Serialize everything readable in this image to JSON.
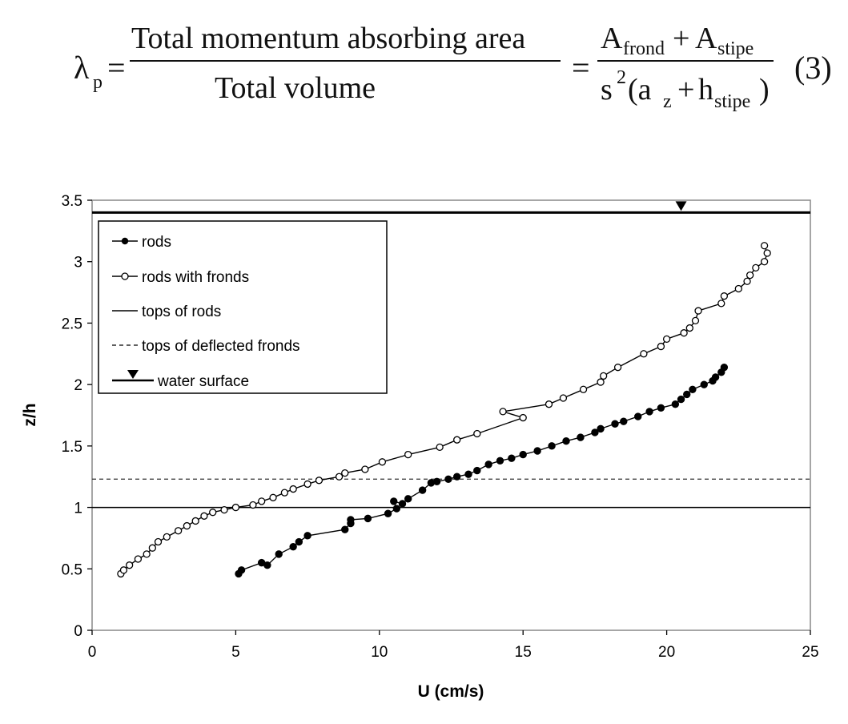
{
  "equation": {
    "lhs_symbol": "λ",
    "lhs_sub": "p",
    "eq1": "=",
    "frac1_num": "Total  momentum  absorbing  area",
    "frac1_den": "Total  volume",
    "eq2": "=",
    "frac2_num_a": "A",
    "frac2_num_a_sub": "frond",
    "frac2_plus": "+",
    "frac2_num_b": "A",
    "frac2_num_b_sub": "stipe",
    "frac2_den_s": "s",
    "frac2_den_sup": "2",
    "frac2_den_open": "(a",
    "frac2_den_az_sub": "z",
    "frac2_den_plus": "+",
    "frac2_den_h": "h",
    "frac2_den_h_sub": "stipe",
    "frac2_den_close": ")",
    "number": "(3)"
  },
  "chart_data": {
    "type": "line",
    "xlabel": "U (cm/s)",
    "ylabel": "z/h",
    "xlim": [
      0,
      25
    ],
    "ylim": [
      0,
      3.5
    ],
    "xticks": [
      "0",
      "5",
      "10",
      "15",
      "20",
      "25"
    ],
    "yticks": [
      "0",
      "0.5",
      "1",
      "1.5",
      "2",
      "2.5",
      "3",
      "3.5"
    ],
    "grid": false,
    "legend_position": "top-left",
    "legend": [
      "rods",
      "rods with fronds",
      "tops of rods",
      "tops of deflected fronds",
      "water surface"
    ],
    "series": [
      {
        "name": "rods",
        "marker": "filled-circle",
        "color": "#000000",
        "x": [
          5.1,
          5.2,
          5.9,
          6.1,
          6.5,
          7.0,
          7.2,
          7.5,
          8.8,
          9.0,
          9.0,
          9.6,
          10.3,
          10.6,
          10.5,
          10.8,
          11.0,
          11.5,
          11.8,
          12.0,
          12.4,
          12.7,
          13.1,
          13.4,
          13.8,
          14.2,
          14.6,
          15.0,
          15.5,
          16.0,
          16.5,
          17.0,
          17.5,
          17.7,
          18.2,
          18.5,
          19.0,
          19.4,
          19.8,
          20.3,
          20.5,
          20.7,
          20.9,
          21.3,
          21.6,
          21.7,
          21.9,
          22.0
        ],
        "y": [
          0.46,
          0.49,
          0.55,
          0.53,
          0.62,
          0.68,
          0.72,
          0.77,
          0.82,
          0.87,
          0.9,
          0.91,
          0.95,
          0.99,
          1.05,
          1.03,
          1.07,
          1.14,
          1.2,
          1.21,
          1.23,
          1.25,
          1.27,
          1.3,
          1.35,
          1.38,
          1.4,
          1.43,
          1.46,
          1.5,
          1.54,
          1.57,
          1.61,
          1.64,
          1.68,
          1.7,
          1.74,
          1.78,
          1.81,
          1.84,
          1.88,
          1.92,
          1.96,
          2.0,
          2.03,
          2.06,
          2.1,
          2.14
        ]
      },
      {
        "name": "rods with fronds",
        "marker": "open-circle",
        "color": "#000000",
        "x": [
          1.0,
          1.1,
          1.3,
          1.6,
          1.9,
          2.1,
          2.3,
          2.6,
          3.0,
          3.3,
          3.6,
          3.9,
          4.2,
          4.6,
          5.0,
          5.6,
          5.9,
          6.3,
          6.7,
          7.0,
          7.5,
          7.9,
          8.6,
          8.8,
          9.5,
          10.1,
          11.0,
          12.1,
          12.7,
          13.4,
          15.0,
          14.3,
          15.9,
          16.4,
          17.1,
          17.7,
          17.8,
          18.3,
          19.2,
          19.8,
          20.0,
          20.6,
          20.8,
          21.0,
          21.1,
          21.9,
          22.0,
          22.5,
          22.8,
          22.9,
          23.1,
          23.4,
          23.5,
          23.4
        ],
        "y": [
          0.46,
          0.49,
          0.53,
          0.58,
          0.62,
          0.67,
          0.72,
          0.76,
          0.81,
          0.85,
          0.89,
          0.93,
          0.96,
          0.98,
          1.0,
          1.02,
          1.05,
          1.08,
          1.12,
          1.15,
          1.19,
          1.22,
          1.25,
          1.28,
          1.31,
          1.37,
          1.43,
          1.49,
          1.55,
          1.6,
          1.73,
          1.78,
          1.84,
          1.89,
          1.96,
          2.02,
          2.07,
          2.14,
          2.25,
          2.31,
          2.37,
          2.42,
          2.46,
          2.52,
          2.6,
          2.66,
          2.72,
          2.78,
          2.84,
          2.89,
          2.95,
          3.0,
          3.07,
          3.13
        ]
      }
    ],
    "reference_lines": [
      {
        "name": "tops of rods",
        "y": 1.0,
        "style": "solid"
      },
      {
        "name": "tops of deflected fronds",
        "y": 1.23,
        "style": "dashed"
      },
      {
        "name": "water surface",
        "y": 3.4,
        "style": "thick",
        "marker_x": 20.5
      }
    ]
  }
}
